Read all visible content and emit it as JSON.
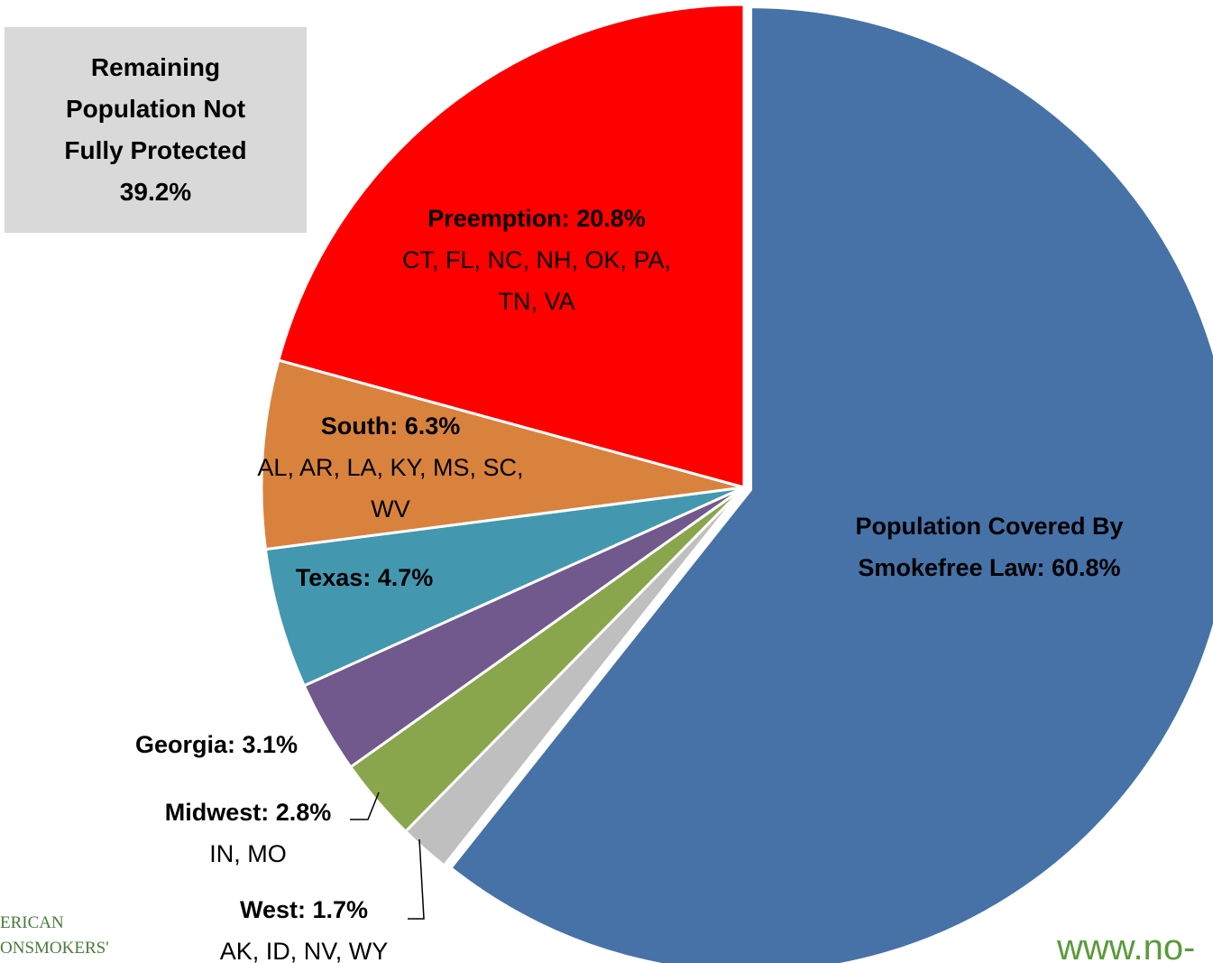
{
  "chart_data": {
    "type": "pie",
    "note": "Remaining Population Not Fully Protected 39.2%",
    "categories": [
      "Population Covered By Smokefree Law",
      "West",
      "Midwest",
      "Georgia",
      "Texas",
      "South",
      "Preemption"
    ],
    "values": [
      60.8,
      1.7,
      2.8,
      3.1,
      4.7,
      6.3,
      20.8
    ],
    "value_labels": [
      "Population Covered By Smokefree Law: 60.8%",
      "West:  1.7%",
      "Midwest: 2.8%",
      "Georgia: 3.1%",
      "Texas: 4.7%",
      "South: 6.3%",
      "Preemption: 20.8%"
    ],
    "label_details": [
      null,
      "AK, ID, NV, WY",
      "IN, MO",
      null,
      null,
      "AL, AR, LA, KY, MS, SC, WV",
      "CT, FL, NC, NH, OK, PA, TN, VA"
    ],
    "colors": [
      "#4672a8",
      "#bfbfbf",
      "#8aa64c",
      "#71598e",
      "#4398b0",
      "#d9823e",
      "#ff0000"
    ],
    "logo_text": [
      "ERICAN",
      "ONSMOKERS'"
    ],
    "footer_url": "www.no-"
  }
}
